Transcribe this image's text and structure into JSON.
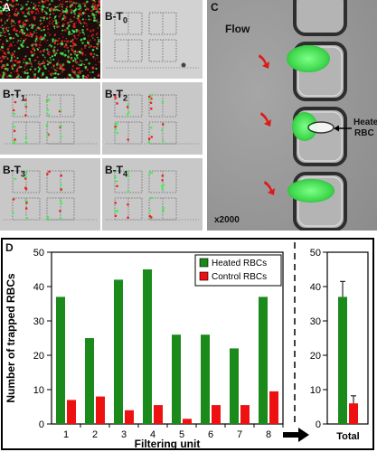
{
  "panel_labels": {
    "a": "A",
    "b0": "B-T0_base",
    "b0_main": "B-T",
    "b0_sub": "0",
    "b1_main": "B-T",
    "b1_sub": "1",
    "b2_main": "B-T",
    "b2_sub": "2",
    "b3_main": "B-T",
    "b3_sub": "3",
    "b4_main": "B-T",
    "b4_sub": "4",
    "c": "C",
    "d": "D"
  },
  "panel_c": {
    "flow_label": "Flow",
    "heated_label_line1": "Heated",
    "heated_label_line2": "RBC",
    "magnification": "x2000"
  },
  "colors": {
    "heated": "#1a8a1a",
    "control": "#ee1111",
    "fluor_green": "#44ee55",
    "fluor_red": "#ee2222"
  },
  "chart_data": [
    {
      "type": "bar",
      "categories": [
        "1",
        "2",
        "3",
        "4",
        "5",
        "6",
        "7",
        "8"
      ],
      "series": [
        {
          "name": "Heated RBCs",
          "values": [
            37,
            25,
            42,
            45,
            26,
            26,
            22,
            37
          ]
        },
        {
          "name": "Control RBCs",
          "values": [
            7,
            8,
            4,
            5.5,
            1.5,
            5.5,
            5.5,
            9.5
          ]
        }
      ],
      "xlabel": "Filtering unit",
      "ylabel": "Number of trapped RBCs",
      "ylim": [
        0,
        50
      ],
      "yticks": [
        "0",
        "10",
        "20",
        "30",
        "40",
        "50"
      ],
      "legend": "top-right"
    },
    {
      "type": "bar",
      "categories": [
        "Total"
      ],
      "series": [
        {
          "name": "Heated RBCs",
          "values": [
            37
          ],
          "error": [
            4.5
          ]
        },
        {
          "name": "Control RBCs",
          "values": [
            6
          ],
          "error": [
            2.2
          ]
        }
      ],
      "ylim": [
        0,
        50
      ],
      "yticks": [
        "0",
        "10",
        "20",
        "30",
        "40",
        "50"
      ]
    }
  ]
}
